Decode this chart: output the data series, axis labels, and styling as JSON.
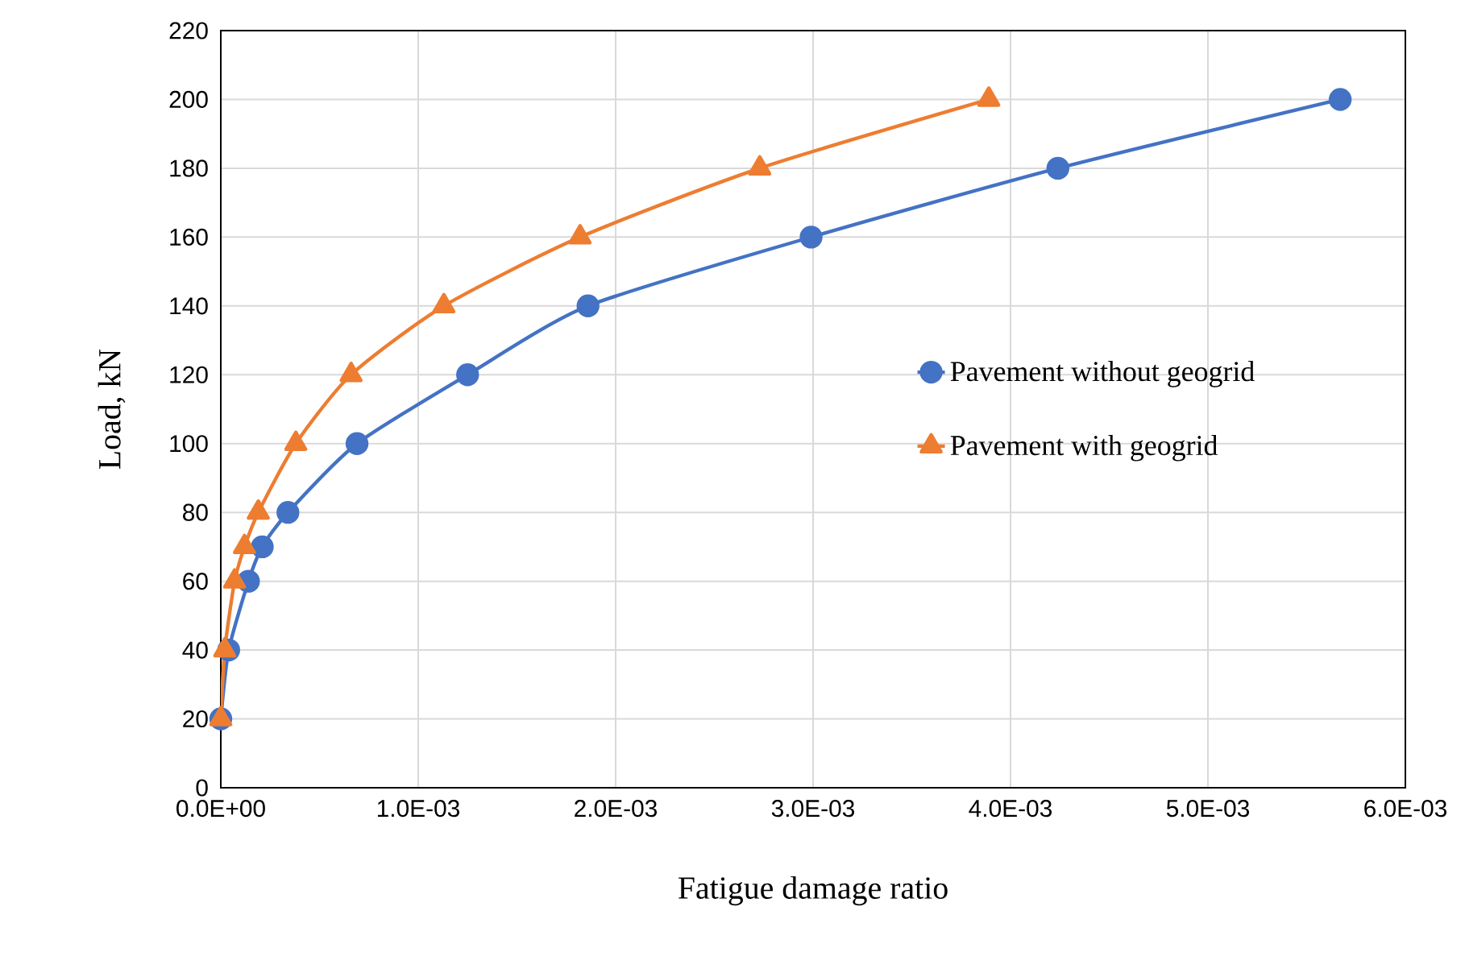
{
  "chart_data": {
    "type": "line",
    "xlabel": "Fatigue damage ratio",
    "ylabel": "Load, kN",
    "xlim": [
      0,
      0.006
    ],
    "ylim": [
      0,
      220
    ],
    "xticks": [
      {
        "value": 0,
        "label": "0.0E+00"
      },
      {
        "value": 0.001,
        "label": "1.0E-03"
      },
      {
        "value": 0.002,
        "label": "2.0E-03"
      },
      {
        "value": 0.003,
        "label": "3.0E-03"
      },
      {
        "value": 0.004,
        "label": "4.0E-03"
      },
      {
        "value": 0.005,
        "label": "5.0E-03"
      },
      {
        "value": 0.006,
        "label": "6.0E-03"
      }
    ],
    "yticks": [
      0,
      20,
      40,
      60,
      80,
      100,
      120,
      140,
      160,
      180,
      200,
      220
    ],
    "grid": true,
    "legend": "right",
    "series": [
      {
        "name": "Pavement without geogrid",
        "color": "#4472c4",
        "marker": "circle",
        "x": [
          0.0,
          4e-05,
          0.00014,
          0.00021,
          0.00034,
          0.00069,
          0.00125,
          0.00186,
          0.00299,
          0.00424,
          0.00567
        ],
        "values": [
          20,
          40,
          60,
          70,
          80,
          100,
          120,
          140,
          160,
          180,
          200
        ]
      },
      {
        "name": "Pavement with geogrid",
        "color": "#ed7d31",
        "marker": "triangle",
        "x": [
          0.0,
          2e-05,
          7e-05,
          0.00012,
          0.00019,
          0.00038,
          0.00066,
          0.00113,
          0.00182,
          0.00273,
          0.00389
        ],
        "values": [
          20,
          40,
          60,
          70,
          80,
          100,
          120,
          140,
          160,
          180,
          200
        ]
      }
    ]
  }
}
